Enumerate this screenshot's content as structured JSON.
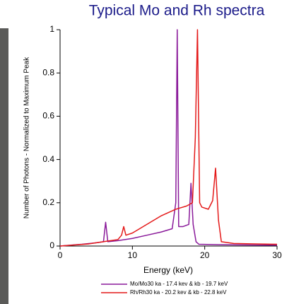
{
  "chart_data": {
    "type": "line",
    "title": "Typical Mo and Rh spectra",
    "x_label": "Energy (keV)",
    "y_label": "Number of Photons - Normalized to Maximum Peak",
    "xlim": [
      0,
      30
    ],
    "ylim": [
      0,
      1
    ],
    "xticks": [
      0,
      10,
      20,
      30
    ],
    "yticks": [
      0,
      0.2,
      0.4,
      0.6,
      0.8,
      1
    ],
    "grid": false,
    "legend": "bottom",
    "series": [
      {
        "name": "Mo/Mo30 ka - 17.4 kev & kb - 19.7 keV",
        "color": "#8a1a9a",
        "x": [
          0,
          1,
          3,
          5,
          6,
          6.3,
          6.6,
          8,
          10,
          12,
          14,
          15.5,
          16,
          16.2,
          16.4,
          17,
          17.8,
          18.1,
          18.4,
          18.8,
          19.2,
          22,
          26,
          30
        ],
        "values": [
          0,
          0.003,
          0.008,
          0.015,
          0.02,
          0.11,
          0.02,
          0.025,
          0.035,
          0.05,
          0.065,
          0.08,
          0.2,
          1,
          0.09,
          0.09,
          0.1,
          0.29,
          0.1,
          0.02,
          0.008,
          0.006,
          0.005,
          0.004
        ]
      },
      {
        "name": "Rh/Rh30 ka - 20.2 kev & kb - 22.8 keV",
        "color": "#e41a1a",
        "x": [
          0,
          2,
          4,
          6,
          8,
          8.5,
          8.8,
          9.1,
          10,
          12,
          14,
          16,
          17.5,
          18.3,
          18.7,
          19,
          19.3,
          19.6,
          20.5,
          21.1,
          21.5,
          21.9,
          22.3,
          24,
          27,
          30
        ],
        "values": [
          0,
          0.005,
          0.01,
          0.02,
          0.03,
          0.05,
          0.09,
          0.05,
          0.06,
          0.1,
          0.14,
          0.17,
          0.185,
          0.2,
          0.5,
          1,
          0.2,
          0.18,
          0.17,
          0.21,
          0.36,
          0.12,
          0.02,
          0.012,
          0.01,
          0.008
        ]
      }
    ]
  }
}
